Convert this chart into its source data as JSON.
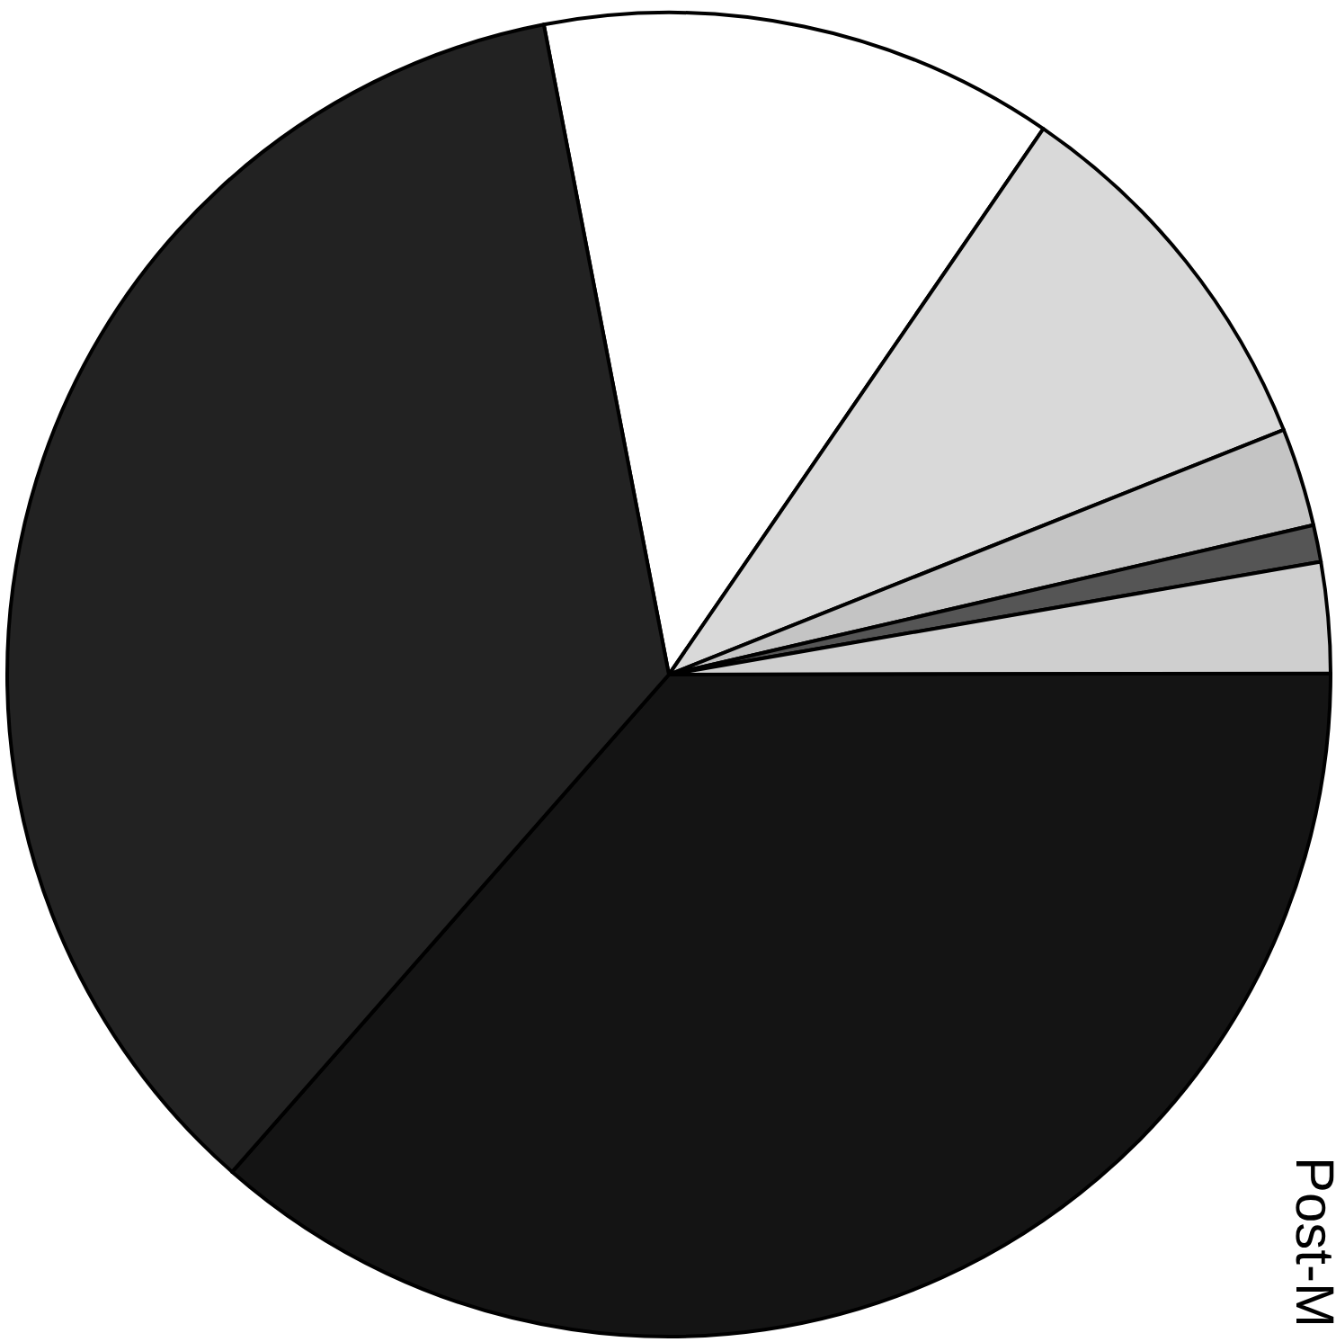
{
  "chart_data": {
    "type": "pie",
    "title": "Post-M",
    "categories": [
      null,
      null,
      null,
      null,
      null,
      null,
      null
    ],
    "values": [
      12.6,
      9.4,
      2.4,
      0.9,
      2.7,
      36.5,
      35.5
    ],
    "colors": [
      "#ffffff",
      "#d9d9d9",
      "#c4c4c4",
      "#555555",
      "#cfcfcf",
      "#141414",
      "#222222"
    ]
  }
}
